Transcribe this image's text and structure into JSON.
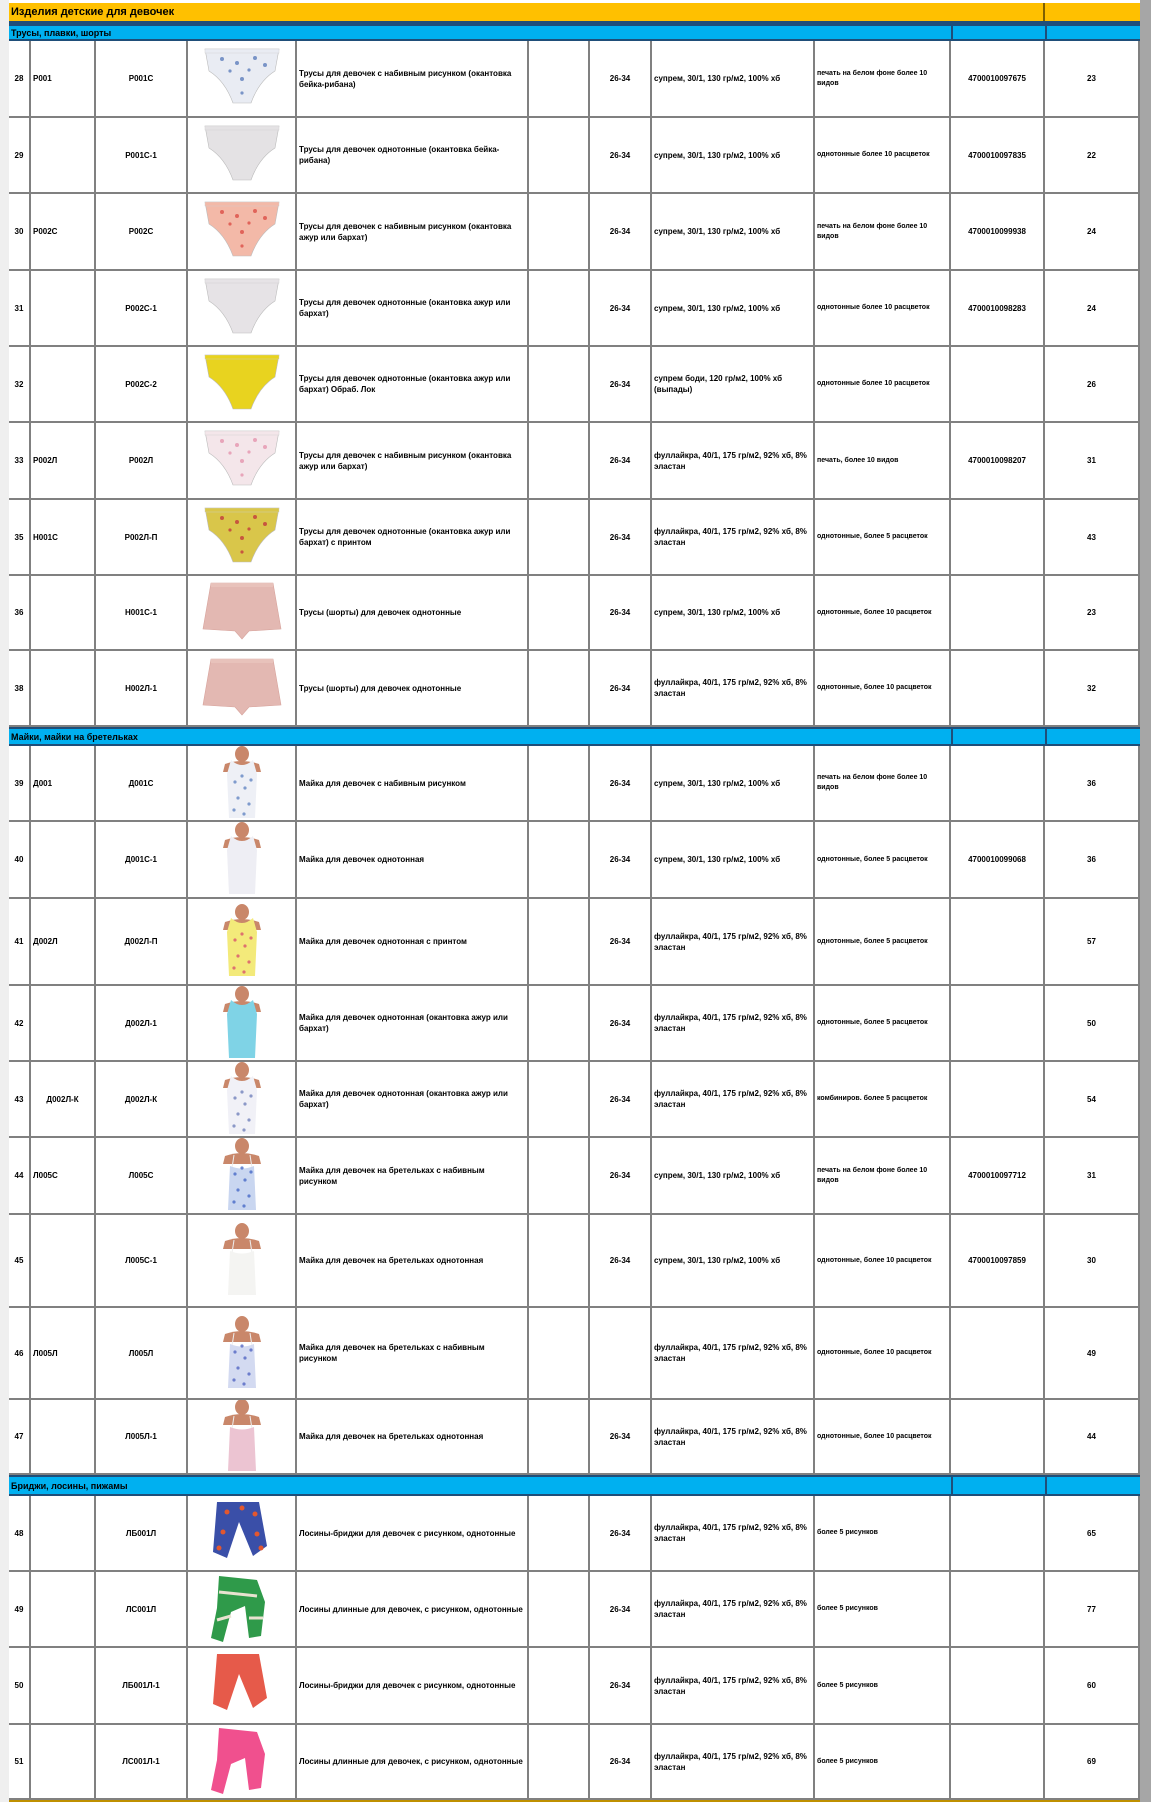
{
  "sheet_title": "Изделия детские для девочек",
  "colors": {
    "title_bg": "#FFC000",
    "section_bg": "#00B0F0",
    "grid": "#808080"
  },
  "sections": [
    {
      "title": "Трусы, плавки, шорты",
      "rows": [
        {
          "num": "28",
          "model": "Р001",
          "article": "Р001С",
          "image": {
            "icon": "briefs-icon",
            "color": "#e9ecf3",
            "print": "#4a6fb5"
          },
          "description": "Трусы для девочек с набивным рисунком (окантовка бейка-рибана)",
          "size": "26-34",
          "fabric": "супрем, 30/1, 130 гр/м2, 100% хб",
          "colors": "печать на белом фоне более 10 видов",
          "barcode": "4700010097675",
          "price": "23"
        },
        {
          "num": "29",
          "model": "",
          "article": "Р001С-1",
          "image": {
            "icon": "briefs-icon",
            "color": "#e4e2e4",
            "print": ""
          },
          "description": "Трусы для девочек однотонные (окантовка бейка-рибана)",
          "size": "26-34",
          "fabric": "супрем, 30/1, 130 гр/м2, 100% хб",
          "colors": "однотонные более 10 расцветок",
          "barcode": "4700010097835",
          "price": "22"
        },
        {
          "num": "30",
          "model": "Р002С",
          "article": "Р002С",
          "image": {
            "icon": "briefs-icon",
            "color": "#f3b9a8",
            "print": "#d9413a"
          },
          "description": "Трусы для девочек с набивным рисунком (окантовка ажур или бархат)",
          "size": "26-34",
          "fabric": "супрем, 30/1, 130 гр/м2, 100% хб",
          "colors": "печать на белом фоне более 10 видов",
          "barcode": "4700010099938",
          "price": "24"
        },
        {
          "num": "31",
          "model": "",
          "article": "Р002С-1",
          "image": {
            "icon": "briefs-icon",
            "color": "#e6e3e6",
            "print": ""
          },
          "description": "Трусы для девочек однотонные (окантовка ажур или бархат)",
          "size": "26-34",
          "fabric": "супрем, 30/1, 130 гр/м2, 100% хб",
          "colors": "однотонные более 10 расцветок",
          "barcode": "4700010098283",
          "price": "24"
        },
        {
          "num": "32",
          "model": "",
          "article": "Р002С-2",
          "image": {
            "icon": "briefs-icon",
            "color": "#e8d31f",
            "print": ""
          },
          "description": "Трусы для девочек однотонные (окантовка ажур или бархат) Обраб. Лок",
          "size": "26-34",
          "fabric": "супрем боди, 120 гр/м2, 100% хб (выпады)",
          "colors": "однотонные более 10 расцветок",
          "barcode": "",
          "price": "26"
        },
        {
          "num": "33",
          "model": "Р002Л",
          "article": "Р002Л",
          "image": {
            "icon": "briefs-icon",
            "color": "#f4e6ea",
            "print": "#e38aa6"
          },
          "description": "Трусы для девочек с набивным рисунком (окантовка ажур или бархат)",
          "size": "26-34",
          "fabric": "фуллайкра, 40/1, 175 гр/м2, 92% хб, 8% эластан",
          "colors": "печать, более 10 видов",
          "barcode": "4700010098207",
          "price": "31"
        },
        {
          "num": "35",
          "model": "Н001С",
          "article": "Р002Л-П",
          "image": {
            "icon": "briefs-icon",
            "color": "#d9c64a",
            "print": "#c0283a"
          },
          "description": "Трусы для девочек однотонные (окантовка ажур или бархат) с принтом",
          "size": "26-34",
          "fabric": "фуллайкра, 40/1, 175 гр/м2, 92% хб, 8% эластан",
          "colors": "однотонные, более 5 расцветок",
          "barcode": "",
          "price": "43"
        },
        {
          "num": "36",
          "model": "",
          "article": "Н001С-1",
          "image": {
            "icon": "shorts-icon",
            "color": "#e3b8b2",
            "print": ""
          },
          "description": "Трусы (шорты) для девочек однотонные",
          "size": "26-34",
          "fabric": "супрем, 30/1, 130 гр/м2, 100% хб",
          "colors": "однотонные, более 10 расцветок",
          "barcode": "",
          "price": "23"
        },
        {
          "num": "38",
          "model": "",
          "article": "Н002Л-1",
          "image": {
            "icon": "shorts-icon",
            "color": "#e3b8b2",
            "print": ""
          },
          "description": "Трусы (шорты) для девочек однотонные",
          "size": "26-34",
          "fabric": "фуллайкра, 40/1, 175 гр/м2, 92% хб, 8% эластан",
          "colors": "однотонные, более 10 расцветок",
          "barcode": "",
          "price": "32"
        }
      ]
    },
    {
      "title": "Майки, майки на бретельках",
      "rows": [
        {
          "num": "39",
          "model": "Д001",
          "article": "Д001С",
          "image": {
            "icon": "tank-top-icon",
            "color": "#eef0f6",
            "print": "#5a7fc0"
          },
          "description": "Майка для девочек с набивным рисунком",
          "size": "26-34",
          "fabric": "супрем, 30/1, 130 гр/м2, 100% хб",
          "colors": "печать на белом фоне более 10 видов",
          "barcode": "",
          "price": "36"
        },
        {
          "num": "40",
          "model": "",
          "article": "Д001С-1",
          "image": {
            "icon": "tank-top-icon",
            "color": "#eeeef4",
            "print": ""
          },
          "description": "Майка для девочек однотонная",
          "size": "26-34",
          "fabric": "супрем, 30/1, 130 гр/м2, 100% хб",
          "colors": "однотонные, более 5 расцветок",
          "barcode": "4700010099068",
          "price": "36"
        },
        {
          "num": "41",
          "model": "Д002Л",
          "article": "Д002Л-П",
          "image": {
            "icon": "tank-top-icon",
            "color": "#f3ea7a",
            "print": "#d84a6a"
          },
          "description": "Майка для девочек однотонная с принтом",
          "size": "26-34",
          "fabric": "фуллайкра, 40/1, 175 гр/м2, 92% хб, 8% эластан",
          "colors": "однотонные, более 5 расцветок",
          "barcode": "",
          "price": "57"
        },
        {
          "num": "42",
          "model": "",
          "article": "Д002Л-1",
          "image": {
            "icon": "tank-top-icon",
            "color": "#7fd3e6",
            "print": ""
          },
          "description": "Майка для девочек однотонная (окантовка ажур или бархат)",
          "size": "26-34",
          "fabric": "фуллайкра, 40/1, 175 гр/м2, 92% хб, 8% эластан",
          "colors": "однотонные, более 5 расцветок",
          "barcode": "",
          "price": "50"
        },
        {
          "num": "43",
          "model": "Д002Л-К",
          "model_center": true,
          "article": "Д002Л-К",
          "image": {
            "icon": "tank-top-icon",
            "color": "#f1f1f7",
            "print": "#6a7bb8"
          },
          "description": "Майка для девочек однотонная (окантовка ажур или бархат)",
          "size": "26-34",
          "fabric": "фуллайкра, 40/1, 175 гр/м2, 92% хб, 8% эластан",
          "colors": "комбиниров. более 5 расцветок",
          "barcode": "",
          "price": "54"
        },
        {
          "num": "44",
          "model": "Л005С",
          "article": "Л005С",
          "image": {
            "icon": "camisole-icon",
            "color": "#c9d6f0",
            "print": "#3f63c4"
          },
          "description": "Майка для девочек на бретельках с набивным рисунком",
          "size": "26-34",
          "fabric": "супрем, 30/1, 130 гр/м2, 100% хб",
          "colors": "печать на белом фоне более 10 видов",
          "barcode": "4700010097712",
          "price": "31"
        },
        {
          "num": "45",
          "model": "",
          "article": "Л005С-1",
          "image": {
            "icon": "camisole-icon",
            "color": "#f4f4f2",
            "print": ""
          },
          "description": "Майка для девочек на бретельках однотонная",
          "size": "26-34",
          "fabric": "супрем, 30/1, 130 гр/м2, 100% хб",
          "colors": "однотонные, более 10 расцветок",
          "barcode": "4700010097859",
          "price": "30"
        },
        {
          "num": "46",
          "model": "Л005Л",
          "article": "Л005Л",
          "image": {
            "icon": "camisole-icon",
            "color": "#d3daf1",
            "print": "#4a5ec0"
          },
          "description": "Майка для девочек на бретельках с набивным рисунком",
          "size": "",
          "fabric": "фуллайкра, 40/1, 175 гр/м2, 92% хб, 8% эластан",
          "colors": "однотонные, более 10 расцветок",
          "barcode": "",
          "price": "49"
        },
        {
          "num": "47",
          "model": "",
          "article": "Л005Л-1",
          "image": {
            "icon": "camisole-icon",
            "color": "#ecc4d2",
            "print": ""
          },
          "description": "Майка для девочек на бретельках однотонная",
          "size": "26-34",
          "fabric": "фуллайкра, 40/1, 175 гр/м2, 92% хб, 8% эластан",
          "colors": "однотонные, более 10 расцветок",
          "barcode": "",
          "price": "44"
        }
      ]
    },
    {
      "title": "Бриджи, лосины, пижамы",
      "rows": [
        {
          "num": "48",
          "model": "",
          "article": "ЛБ001Л",
          "image": {
            "icon": "capri-leggings-icon",
            "color": "#3a4fa8",
            "print": "#e2572f"
          },
          "description": "Лосины-бриджи для девочек с рисунком, однотонные",
          "size": "26-34",
          "fabric": "фуллайкра, 40/1, 175 гр/м2, 92% хб, 8% эластан",
          "colors": "более 5 рисунков",
          "barcode": "",
          "price": "65"
        },
        {
          "num": "49",
          "model": "",
          "article": "ЛС001Л",
          "image": {
            "icon": "leggings-icon",
            "color": "#2f9a4a",
            "print": "#e8e2d0"
          },
          "description": "Лосины длинные для девочек, с рисунком, однотонные",
          "size": "26-34",
          "fabric": "фуллайкра, 40/1, 175 гр/м2, 92% хб, 8% эластан",
          "colors": "более 5 рисунков",
          "barcode": "",
          "price": "77"
        },
        {
          "num": "50",
          "model": "",
          "article": "ЛБ001Л-1",
          "image": {
            "icon": "capri-leggings-icon",
            "color": "#e65a4a",
            "print": ""
          },
          "description": "Лосины-бриджи для девочек с рисунком, однотонные",
          "size": "26-34",
          "fabric": "фуллайкра, 40/1, 175 гр/м2, 92% хб, 8% эластан",
          "colors": "более 5 рисунков",
          "barcode": "",
          "price": "60"
        },
        {
          "num": "51",
          "model": "",
          "article": "ЛС001Л-1",
          "image": {
            "icon": "leggings-icon",
            "color": "#f0508e",
            "print": ""
          },
          "description": "Лосины длинные для девочек, с рисунком, однотонные",
          "size": "26-34",
          "fabric": "фуллайкра, 40/1, 175 гр/м2, 92% хб, 8% эластан",
          "colors": "более 5 рисунков",
          "barcode": "",
          "price": "69"
        }
      ]
    }
  ]
}
